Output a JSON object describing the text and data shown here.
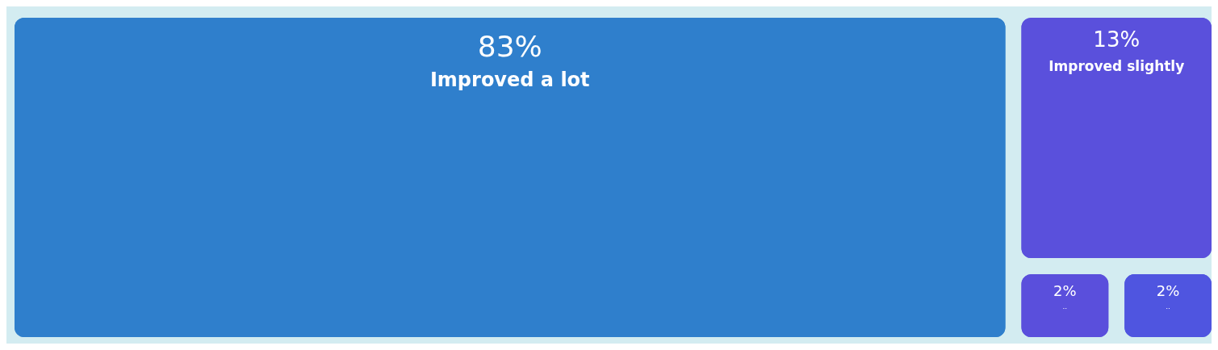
{
  "chart_data": {
    "type": "other",
    "categories": [
      "Improved a lot",
      "Improved slightly",
      "..",
      ".."
    ],
    "values": [
      83,
      13,
      2,
      2
    ],
    "value_labels": [
      "83%",
      "13%",
      "2%",
      "2%"
    ],
    "colors": [
      "#2f7fcc",
      "#5a50dc",
      "#4f55e0",
      "#5a4fdc"
    ]
  }
}
